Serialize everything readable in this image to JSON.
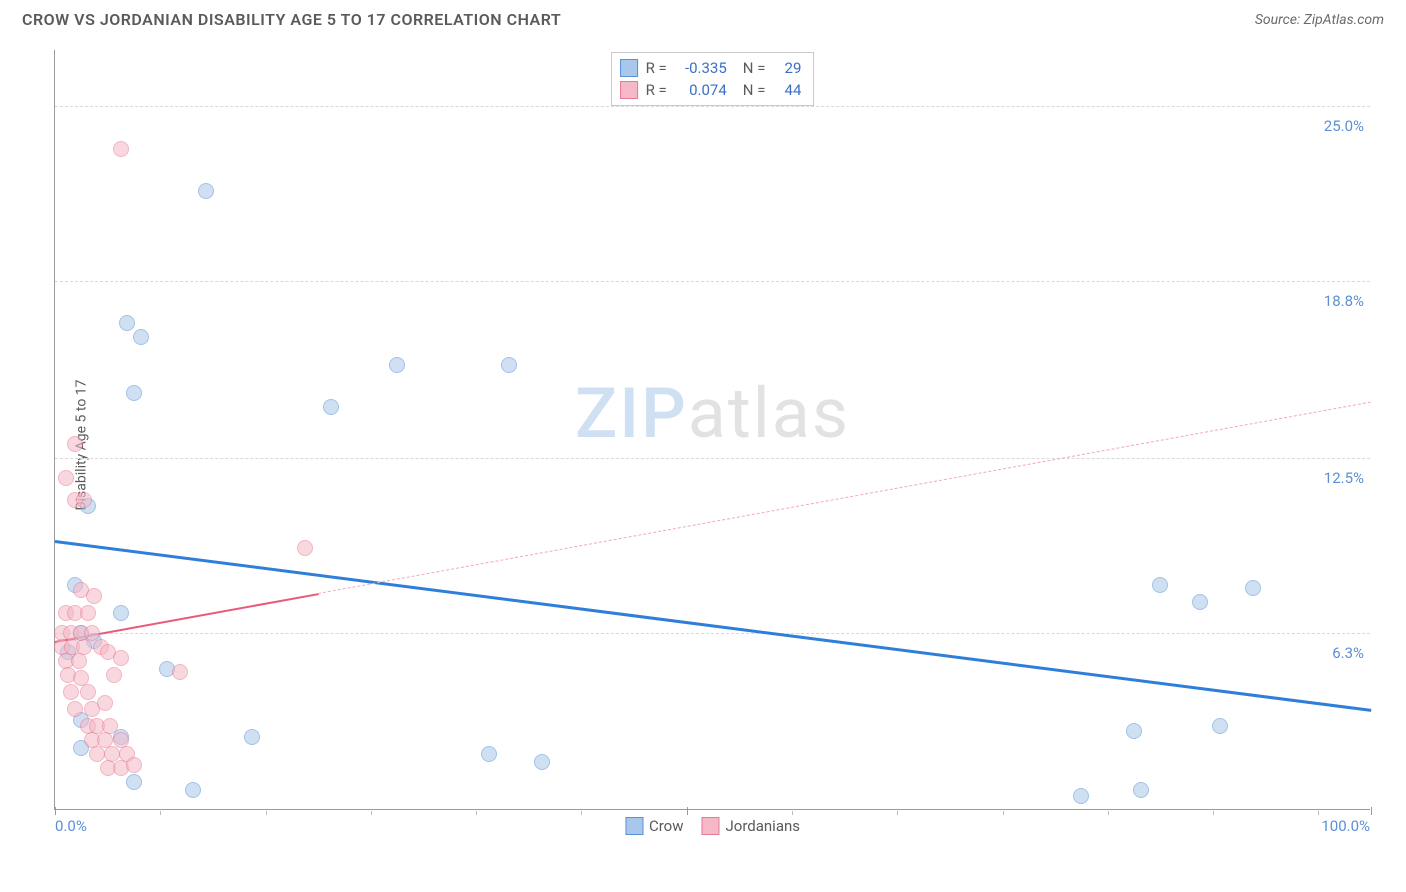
{
  "header": {
    "title": "CROW VS JORDANIAN DISABILITY AGE 5 TO 17 CORRELATION CHART",
    "source_label": "Source:",
    "source_name": "ZipAtlas.com"
  },
  "chart": {
    "type": "scatter",
    "ylabel": "Disability Age 5 to 17",
    "xlim": [
      0,
      100
    ],
    "ylim": [
      0,
      27
    ],
    "x_tick_major": [
      0,
      48,
      100
    ],
    "x_tick_minor": [
      8,
      16,
      24,
      32,
      40,
      56,
      64,
      72,
      80,
      88,
      96
    ],
    "x_min_label": "0.0%",
    "x_max_label": "100.0%",
    "y_gridlines": [
      {
        "v": 6.3,
        "label": "6.3%"
      },
      {
        "v": 12.5,
        "label": "12.5%"
      },
      {
        "v": 18.8,
        "label": "18.8%"
      },
      {
        "v": 25.0,
        "label": "25.0%"
      }
    ],
    "background_color": "#ffffff",
    "grid_color": "#d8d8d8",
    "axis_color": "#9a9a9a",
    "tick_label_color": "#5b8fd6",
    "marker_radius": 8,
    "marker_opacity": 0.55,
    "series": [
      {
        "name": "Crow",
        "fill": "#a9c7ea",
        "stroke": "#5b8fd6",
        "R_label": "R =",
        "R": "-0.335",
        "N_label": "N =",
        "N": "29",
        "trend": {
          "x1": 0,
          "y1": 9.6,
          "x2": 100,
          "y2": 3.6,
          "solid_to_x": 100
        },
        "points": [
          {
            "x": 11.5,
            "y": 22.0
          },
          {
            "x": 5.5,
            "y": 17.3
          },
          {
            "x": 6.5,
            "y": 16.8
          },
          {
            "x": 26.0,
            "y": 15.8
          },
          {
            "x": 34.5,
            "y": 15.8
          },
          {
            "x": 6.0,
            "y": 14.8
          },
          {
            "x": 21.0,
            "y": 14.3
          },
          {
            "x": 2.5,
            "y": 10.8
          },
          {
            "x": 1.5,
            "y": 8.0
          },
          {
            "x": 84.0,
            "y": 8.0
          },
          {
            "x": 87.0,
            "y": 7.4
          },
          {
            "x": 91.0,
            "y": 7.9
          },
          {
            "x": 5.0,
            "y": 7.0
          },
          {
            "x": 2.0,
            "y": 6.3
          },
          {
            "x": 3.0,
            "y": 6.0
          },
          {
            "x": 1.0,
            "y": 5.6
          },
          {
            "x": 8.5,
            "y": 5.0
          },
          {
            "x": 2.0,
            "y": 3.2
          },
          {
            "x": 5.0,
            "y": 2.6
          },
          {
            "x": 15.0,
            "y": 2.6
          },
          {
            "x": 82.0,
            "y": 2.8
          },
          {
            "x": 88.5,
            "y": 3.0
          },
          {
            "x": 33.0,
            "y": 2.0
          },
          {
            "x": 37.0,
            "y": 1.7
          },
          {
            "x": 6.0,
            "y": 1.0
          },
          {
            "x": 10.5,
            "y": 0.7
          },
          {
            "x": 78.0,
            "y": 0.5
          },
          {
            "x": 82.5,
            "y": 0.7
          },
          {
            "x": 2.0,
            "y": 2.2
          }
        ]
      },
      {
        "name": "Jordanians",
        "fill": "#f5b8c6",
        "stroke": "#e77a93",
        "R_label": "R =",
        "R": " 0.074",
        "N_label": "N =",
        "N": "44",
        "trend": {
          "x1": 0,
          "y1": 6.0,
          "x2": 100,
          "y2": 14.5,
          "solid_to_x": 20
        },
        "points": [
          {
            "x": 5.0,
            "y": 23.5
          },
          {
            "x": 1.5,
            "y": 13.0
          },
          {
            "x": 0.8,
            "y": 11.8
          },
          {
            "x": 1.5,
            "y": 11.0
          },
          {
            "x": 2.2,
            "y": 11.0
          },
          {
            "x": 19.0,
            "y": 9.3
          },
          {
            "x": 2.0,
            "y": 7.8
          },
          {
            "x": 3.0,
            "y": 7.6
          },
          {
            "x": 0.8,
            "y": 7.0
          },
          {
            "x": 1.5,
            "y": 7.0
          },
          {
            "x": 2.5,
            "y": 7.0
          },
          {
            "x": 0.5,
            "y": 6.3
          },
          {
            "x": 1.2,
            "y": 6.3
          },
          {
            "x": 2.0,
            "y": 6.3
          },
          {
            "x": 2.8,
            "y": 6.3
          },
          {
            "x": 0.5,
            "y": 5.8
          },
          {
            "x": 1.3,
            "y": 5.8
          },
          {
            "x": 2.2,
            "y": 5.8
          },
          {
            "x": 3.5,
            "y": 5.8
          },
          {
            "x": 0.8,
            "y": 5.3
          },
          {
            "x": 1.8,
            "y": 5.3
          },
          {
            "x": 4.0,
            "y": 5.6
          },
          {
            "x": 5.0,
            "y": 5.4
          },
          {
            "x": 1.0,
            "y": 4.8
          },
          {
            "x": 2.0,
            "y": 4.7
          },
          {
            "x": 4.5,
            "y": 4.8
          },
          {
            "x": 9.5,
            "y": 4.9
          },
          {
            "x": 1.2,
            "y": 4.2
          },
          {
            "x": 2.5,
            "y": 4.2
          },
          {
            "x": 1.5,
            "y": 3.6
          },
          {
            "x": 2.8,
            "y": 3.6
          },
          {
            "x": 3.8,
            "y": 3.8
          },
          {
            "x": 2.5,
            "y": 3.0
          },
          {
            "x": 3.2,
            "y": 3.0
          },
          {
            "x": 4.2,
            "y": 3.0
          },
          {
            "x": 2.8,
            "y": 2.5
          },
          {
            "x": 3.8,
            "y": 2.5
          },
          {
            "x": 5.0,
            "y": 2.5
          },
          {
            "x": 3.2,
            "y": 2.0
          },
          {
            "x": 4.3,
            "y": 2.0
          },
          {
            "x": 5.5,
            "y": 2.0
          },
          {
            "x": 4.0,
            "y": 1.5
          },
          {
            "x": 5.0,
            "y": 1.5
          },
          {
            "x": 6.0,
            "y": 1.6
          }
        ]
      }
    ],
    "legend_bottom": [
      {
        "label": "Crow",
        "fill": "#a9c7ea",
        "stroke": "#5b8fd6"
      },
      {
        "label": "Jordanians",
        "fill": "#f5b8c6",
        "stroke": "#e77a93"
      }
    ],
    "watermark": {
      "part1": "ZIP",
      "part2": "atlas"
    }
  }
}
